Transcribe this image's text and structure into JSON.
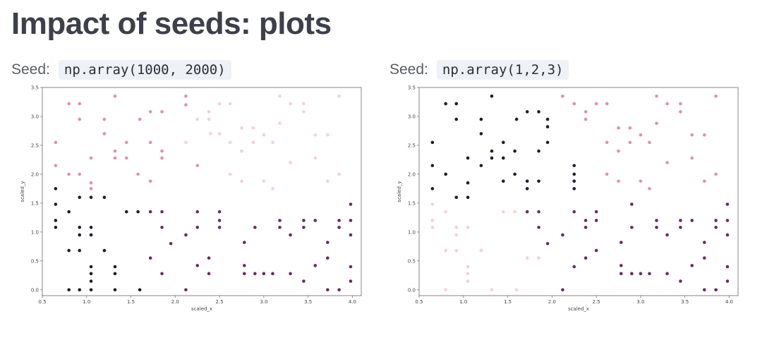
{
  "page": {
    "title": "Impact of seeds: plots"
  },
  "left": {
    "seed_label": "Seed:",
    "seed_code": "np.array(1000, 2000)"
  },
  "right": {
    "seed_label": "Seed:",
    "seed_code": "np.array(1,2,3)"
  },
  "colors": {
    "cluster_dark": "#1f1d2a",
    "cluster_purple": "#6b2a63",
    "cluster_pink": "#e58fa6",
    "cluster_light": "#f6cfd6"
  },
  "chart_data": [
    {
      "type": "scatter",
      "title": "",
      "xlabel": "scaled_x",
      "ylabel": "scaled_y",
      "xlim": [
        0.5,
        4.1
      ],
      "ylim": [
        -0.1,
        3.5
      ],
      "xticks": [
        "0.5",
        "1.0",
        "1.5",
        "2.0",
        "2.5",
        "3.0",
        "3.5",
        "4.0"
      ],
      "yticks": [
        "0.0",
        "0.5",
        "1.0",
        "1.5",
        "2.0",
        "2.5",
        "3.0",
        "3.5"
      ],
      "grid": false,
      "series": [
        {
          "cluster": "dark",
          "color": "#1f1d2a",
          "x": [
            0.65,
            0.65,
            0.65,
            0.65,
            0.8,
            0.8,
            0.8,
            0.92,
            0.92,
            0.92,
            0.92,
            0.92,
            1.05,
            1.05,
            1.05,
            1.05,
            1.05,
            1.05,
            1.05,
            1.2,
            1.2,
            1.32,
            1.32,
            1.32,
            1.45,
            1.58,
            1.6
          ],
          "y": [
            1.75,
            1.48,
            1.2,
            1.08,
            1.35,
            0.68,
            0.0,
            1.6,
            1.08,
            0.95,
            0.68,
            0.0,
            1.6,
            1.08,
            0.95,
            0.4,
            0.28,
            0.15,
            0.0,
            1.6,
            0.68,
            0.4,
            0.28,
            0.0,
            1.35,
            1.35,
            0.0
          ]
        },
        {
          "cluster": "purple",
          "color": "#6b2a63",
          "x": [
            1.72,
            1.72,
            1.85,
            1.85,
            1.85,
            1.95,
            2.12,
            2.12,
            2.25,
            2.25,
            2.25,
            2.38,
            2.38,
            2.5,
            2.5,
            2.5,
            2.78,
            2.78,
            2.78,
            2.9,
            2.9,
            3.0,
            3.1,
            3.18,
            3.18,
            3.3,
            3.3,
            3.45,
            3.45,
            3.45,
            3.58,
            3.58,
            3.72,
            3.72,
            3.72,
            3.85,
            3.85,
            3.85,
            3.98,
            3.98,
            3.98,
            3.98,
            3.98
          ],
          "y": [
            1.35,
            0.55,
            1.35,
            1.08,
            0.28,
            0.8,
            0.95,
            0.0,
            1.35,
            1.08,
            0.42,
            0.55,
            0.28,
            1.35,
            1.2,
            1.08,
            0.82,
            0.42,
            0.28,
            1.08,
            0.28,
            0.28,
            0.28,
            1.2,
            1.08,
            0.95,
            0.28,
            1.2,
            1.08,
            0.15,
            1.2,
            0.42,
            0.82,
            0.55,
            0.0,
            1.2,
            1.08,
            0.0,
            1.48,
            1.2,
            0.95,
            0.4,
            0.15
          ]
        },
        {
          "cluster": "pink",
          "color": "#e58fa6",
          "x": [
            0.65,
            0.65,
            0.8,
            0.8,
            0.92,
            0.92,
            0.92,
            1.05,
            1.05,
            1.05,
            1.2,
            1.2,
            1.32,
            1.32,
            1.32,
            1.45,
            1.45,
            1.58,
            1.6,
            1.72,
            1.72,
            1.72,
            1.85,
            1.85,
            1.85,
            2.12,
            2.12,
            2.25
          ],
          "y": [
            2.55,
            2.15,
            3.22,
            2.0,
            3.22,
            2.95,
            2.0,
            2.28,
            1.85,
            1.75,
            2.95,
            2.7,
            3.35,
            2.4,
            2.28,
            2.55,
            2.28,
            2.0,
            2.95,
            3.08,
            2.55,
            1.88,
            3.08,
            2.4,
            2.28,
            3.35,
            3.2,
            2.15
          ]
        },
        {
          "cluster": "light",
          "color": "#f6cfd6",
          "x": [
            2.38,
            2.38,
            2.5,
            2.5,
            2.62,
            2.62,
            2.62,
            2.75,
            2.75,
            2.75,
            2.88,
            2.88,
            3.0,
            3.0,
            3.1,
            3.1,
            3.18,
            3.18,
            3.3,
            3.3,
            3.45,
            3.45,
            3.58,
            3.58,
            3.72,
            3.72,
            3.85,
            3.85,
            2.25,
            2.4,
            2.12
          ],
          "y": [
            3.08,
            2.95,
            3.22,
            2.7,
            3.22,
            2.55,
            2.0,
            2.8,
            2.4,
            1.88,
            2.8,
            2.55,
            2.68,
            1.88,
            2.55,
            1.75,
            3.35,
            2.88,
            3.22,
            2.2,
            3.22,
            3.08,
            2.68,
            2.28,
            2.68,
            1.88,
            3.35,
            2.0,
            2.95,
            2.7,
            2.55
          ]
        }
      ]
    },
    {
      "type": "scatter",
      "title": "",
      "xlabel": "scaled_x",
      "ylabel": "scaled_y",
      "xlim": [
        0.5,
        4.1
      ],
      "ylim": [
        -0.1,
        3.5
      ],
      "xticks": [
        "0.5",
        "1.0",
        "1.5",
        "2.0",
        "2.5",
        "3.0",
        "3.5",
        "4.0"
      ],
      "yticks": [
        "0.0",
        "0.5",
        "1.0",
        "1.5",
        "2.0",
        "2.5",
        "3.0",
        "3.5"
      ],
      "grid": false,
      "series": [
        {
          "cluster": "dark",
          "color": "#1f1d2a",
          "x": [
            0.65,
            0.65,
            0.65,
            0.8,
            0.8,
            0.92,
            0.92,
            0.92,
            1.05,
            1.05,
            1.05,
            1.2,
            1.2,
            1.2,
            1.32,
            1.32,
            1.32,
            1.45,
            1.45,
            1.45,
            1.58,
            1.58,
            1.6,
            1.72,
            1.72,
            1.72,
            1.85,
            1.85,
            1.85,
            1.95,
            1.95,
            1.95,
            2.25,
            2.25,
            2.25,
            2.25
          ],
          "y": [
            2.55,
            2.15,
            1.75,
            3.22,
            2.0,
            3.22,
            2.95,
            1.6,
            2.28,
            1.85,
            1.6,
            2.95,
            2.7,
            2.15,
            3.35,
            2.4,
            2.28,
            2.55,
            2.28,
            1.88,
            2.0,
            2.4,
            2.95,
            3.08,
            1.88,
            1.75,
            3.08,
            2.4,
            1.88,
            2.95,
            2.55,
            2.82,
            2.15,
            2.0,
            1.88,
            1.75
          ]
        },
        {
          "cluster": "purple",
          "color": "#6b2a63",
          "x": [
            1.72,
            1.85,
            1.85,
            1.95,
            2.12,
            2.12,
            2.25,
            2.25,
            2.38,
            2.38,
            2.38,
            2.5,
            2.5,
            2.5,
            2.78,
            2.78,
            2.78,
            2.9,
            2.9,
            3.0,
            3.1,
            3.18,
            3.18,
            3.3,
            3.3,
            3.45,
            3.45,
            3.45,
            3.58,
            3.58,
            3.72,
            3.72,
            3.72,
            3.85,
            3.85,
            3.85,
            3.98,
            3.98,
            3.98,
            3.98,
            2.9,
            3.98
          ],
          "y": [
            1.35,
            1.35,
            1.08,
            0.8,
            0.95,
            0.0,
            1.35,
            0.4,
            1.2,
            1.08,
            0.55,
            1.35,
            1.2,
            0.68,
            0.82,
            0.42,
            0.28,
            1.08,
            0.28,
            0.28,
            0.28,
            1.2,
            1.08,
            0.95,
            0.28,
            1.2,
            1.08,
            0.15,
            1.2,
            0.42,
            0.82,
            0.55,
            0.0,
            1.2,
            1.08,
            0.0,
            1.48,
            1.2,
            0.4,
            0.15,
            1.48,
            0.95
          ]
        },
        {
          "cluster": "pink",
          "color": "#e58fa6",
          "x": [
            2.12,
            2.25,
            2.38,
            2.38,
            2.5,
            2.62,
            2.62,
            2.62,
            2.75,
            2.75,
            2.75,
            2.88,
            2.88,
            3.0,
            3.0,
            3.1,
            3.1,
            3.18,
            3.18,
            3.3,
            3.3,
            3.45,
            3.45,
            3.58,
            3.58,
            3.72,
            3.72,
            3.85,
            3.85
          ],
          "y": [
            3.35,
            3.22,
            3.08,
            2.95,
            3.22,
            3.22,
            2.55,
            2.0,
            2.8,
            2.4,
            1.88,
            2.8,
            2.55,
            2.68,
            1.88,
            2.55,
            1.75,
            3.35,
            2.88,
            3.22,
            2.2,
            3.22,
            3.08,
            2.68,
            2.28,
            2.68,
            1.88,
            3.35,
            2.0
          ]
        },
        {
          "cluster": "light",
          "color": "#f6cfd6",
          "x": [
            0.65,
            0.65,
            0.65,
            0.8,
            0.8,
            0.8,
            0.92,
            0.92,
            0.92,
            1.05,
            1.05,
            1.05,
            1.05,
            1.2,
            1.32,
            1.45,
            1.58,
            1.6,
            1.72,
            1.85
          ],
          "y": [
            1.48,
            1.2,
            1.08,
            1.35,
            0.68,
            0.0,
            1.08,
            0.95,
            0.68,
            1.08,
            0.4,
            0.28,
            0.15,
            0.68,
            0.0,
            1.35,
            1.35,
            0.0,
            0.55,
            0.55
          ]
        }
      ]
    }
  ]
}
